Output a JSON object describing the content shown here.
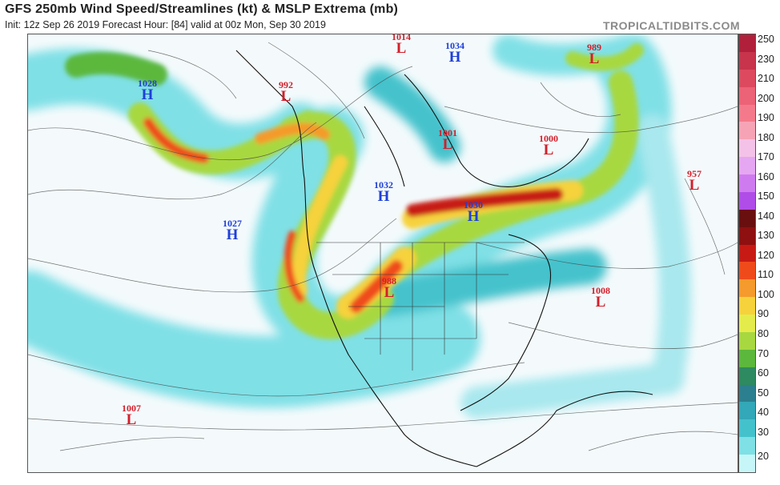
{
  "header": {
    "title": "GFS 250mb Wind Speed/Streamlines (kt) & MSLP Extrema (mb)",
    "subtitle": "Init: 12z Sep 26 2019   Forecast Hour: [84]   valid at 00z Mon, Sep 30 2019",
    "brand": "TROPICALTIDBITS.COM"
  },
  "colorbar": {
    "ticks": [
      "250",
      "230",
      "210",
      "200",
      "190",
      "180",
      "170",
      "160",
      "150",
      "140",
      "130",
      "120",
      "110",
      "100",
      "90",
      "80",
      "70",
      "60",
      "50",
      "40",
      "30",
      "20"
    ],
    "colors": [
      "#b1203a",
      "#c8344c",
      "#dd4a60",
      "#ec6276",
      "#f47a8b",
      "#f7a3b6",
      "#f4c2e8",
      "#e6a7f2",
      "#cf7bf0",
      "#b04de8",
      "#6a0f0f",
      "#8e1010",
      "#c81a14",
      "#ef4b1a",
      "#f59a2c",
      "#f6d23c",
      "#e4ec4c",
      "#a8d840",
      "#5cb83c",
      "#2e8a60",
      "#2c7f8e",
      "#33a8b8",
      "#44c2cc",
      "#7fe0e6",
      "#c6f6f8"
    ]
  },
  "pressure_systems": [
    {
      "type": "H",
      "value": "1028"
    },
    {
      "type": "L",
      "value": "992"
    },
    {
      "type": "L",
      "value": "1014"
    },
    {
      "type": "H",
      "value": "1034"
    },
    {
      "type": "L",
      "value": "989"
    },
    {
      "type": "L",
      "value": "1001"
    },
    {
      "type": "L",
      "value": "1000"
    },
    {
      "type": "H",
      "value": "1032"
    },
    {
      "type": "H",
      "value": "1030"
    },
    {
      "type": "L",
      "value": "957"
    },
    {
      "type": "H",
      "value": "1027"
    },
    {
      "type": "L",
      "value": "988"
    },
    {
      "type": "L",
      "value": "1008"
    },
    {
      "type": "L",
      "value": "1007"
    }
  ]
}
